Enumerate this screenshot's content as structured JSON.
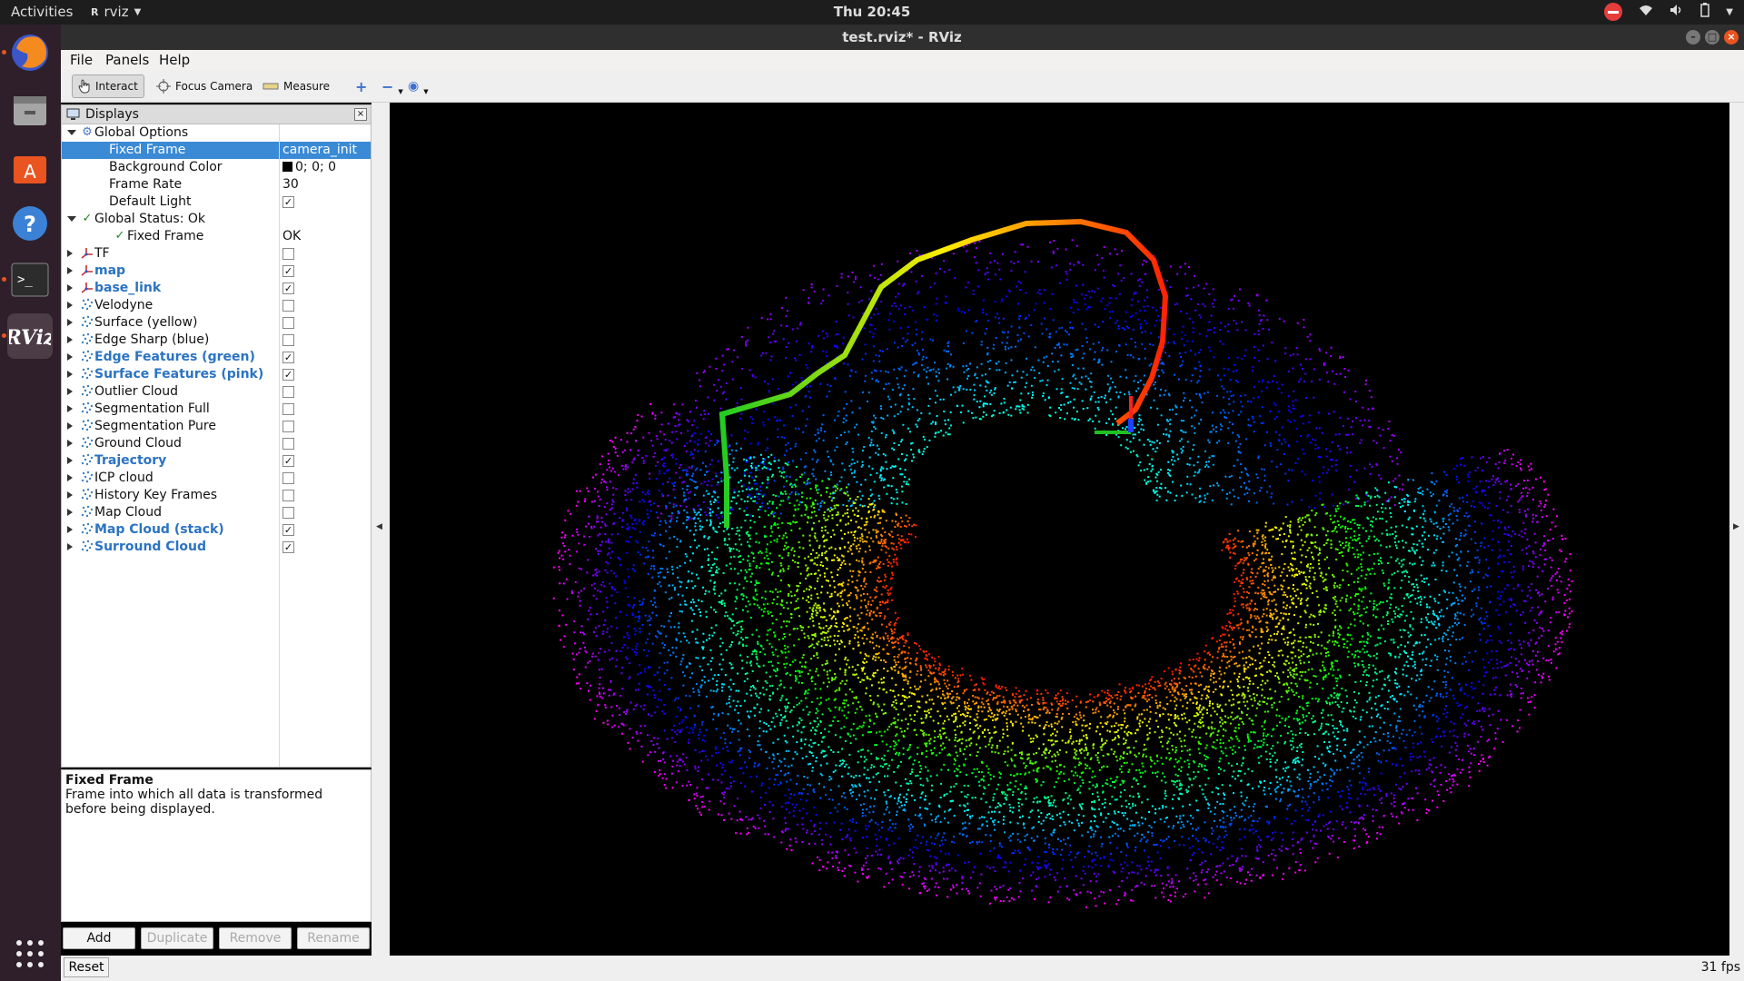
{
  "topbar": {
    "activities": "Activities",
    "app": "rviz",
    "clock": "Thu 20:45"
  },
  "window": {
    "title": "test.rviz* - RViz"
  },
  "menu": {
    "file": "File",
    "panels": "Panels",
    "help": "Help"
  },
  "toolbar": {
    "interact": "Interact",
    "focus_camera": "Focus Camera",
    "measure": "Measure"
  },
  "displays": {
    "title": "Displays",
    "rows": [
      {
        "label": "Global Options",
        "level": 0,
        "arrow": "down",
        "icon": "gear-icon"
      },
      {
        "label": "Fixed Frame",
        "level": 1,
        "value": "camera_init",
        "selected": true
      },
      {
        "label": "Background Color",
        "level": 1,
        "value": "0; 0; 0",
        "swatch": "#000000"
      },
      {
        "label": "Frame Rate",
        "level": 1,
        "value": "30"
      },
      {
        "label": "Default Light",
        "level": 1,
        "check": true
      },
      {
        "label": "Global Status: Ok",
        "level": 0,
        "arrow": "down",
        "icon": "check-icon"
      },
      {
        "label": "Fixed Frame",
        "level": 2,
        "value": "OK",
        "icon": "check-icon"
      },
      {
        "label": "TF",
        "level": 0,
        "arrow": "right",
        "icon": "tf-icon",
        "check": false
      },
      {
        "label": "map",
        "level": 0,
        "arrow": "right",
        "icon": "axes-icon",
        "check": true,
        "bold": true
      },
      {
        "label": "base_link",
        "level": 0,
        "arrow": "right",
        "icon": "axes-icon",
        "check": true,
        "bold": true
      },
      {
        "label": "Velodyne",
        "level": 0,
        "arrow": "right",
        "icon": "pointcloud-icon",
        "check": false
      },
      {
        "label": "Surface (yellow)",
        "level": 0,
        "arrow": "right",
        "icon": "pointcloud-icon",
        "check": false
      },
      {
        "label": "Edge Sharp (blue)",
        "level": 0,
        "arrow": "right",
        "icon": "pointcloud-icon",
        "check": false
      },
      {
        "label": "Edge Features (green)",
        "level": 0,
        "arrow": "right",
        "icon": "pointcloud-icon",
        "check": true,
        "bold": true
      },
      {
        "label": "Surface Features (pink)",
        "level": 0,
        "arrow": "right",
        "icon": "pointcloud-icon",
        "check": true,
        "bold": true
      },
      {
        "label": "Outlier Cloud",
        "level": 0,
        "arrow": "right",
        "icon": "pointcloud-icon",
        "check": false
      },
      {
        "label": "Segmentation Full",
        "level": 0,
        "arrow": "right",
        "icon": "pointcloud-icon",
        "check": false
      },
      {
        "label": "Segmentation Pure",
        "level": 0,
        "arrow": "right",
        "icon": "pointcloud-icon",
        "check": false
      },
      {
        "label": "Ground Cloud",
        "level": 0,
        "arrow": "right",
        "icon": "pointcloud-icon",
        "check": false
      },
      {
        "label": "Trajectory",
        "level": 0,
        "arrow": "right",
        "icon": "pointcloud-icon",
        "check": true,
        "bold": true
      },
      {
        "label": "ICP cloud",
        "level": 0,
        "arrow": "right",
        "icon": "pointcloud-icon",
        "check": false
      },
      {
        "label": "History Key Frames",
        "level": 0,
        "arrow": "right",
        "icon": "pointcloud-icon",
        "check": false
      },
      {
        "label": "Map Cloud",
        "level": 0,
        "arrow": "right",
        "icon": "pointcloud-icon",
        "check": false
      },
      {
        "label": "Map Cloud (stack)",
        "level": 0,
        "arrow": "right",
        "icon": "pointcloud-icon",
        "check": true,
        "bold": true
      },
      {
        "label": "Surround Cloud",
        "level": 0,
        "arrow": "right",
        "icon": "pointcloud-icon",
        "check": true,
        "bold": true
      }
    ]
  },
  "description": {
    "title": "Fixed Frame",
    "text": "Frame into which all data is transformed before being displayed."
  },
  "buttons": {
    "add": "Add",
    "duplicate": "Duplicate",
    "remove": "Remove",
    "rename": "Rename",
    "reset": "Reset"
  },
  "status": {
    "fps": "31 fps"
  },
  "colors": {
    "selection": "#3a8ad6",
    "bold_label": "#2b73c3",
    "viewport_bg": "#000000"
  }
}
